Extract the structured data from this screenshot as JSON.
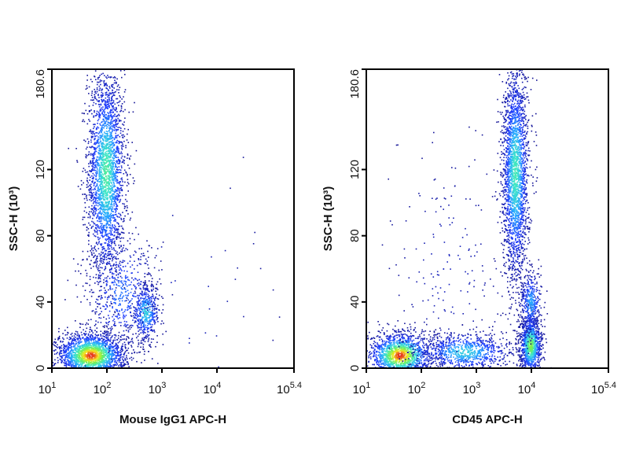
{
  "chart_data": [
    {
      "type": "scatter",
      "title": "",
      "xlabel": "Mouse IgG1 APC-H",
      "ylabel": "SSC-H (10³)",
      "x_scale": "log",
      "xlim": [
        10,
        251189
      ],
      "ylim": [
        0,
        180.6
      ],
      "x_ticks": [
        {
          "value": 10,
          "base": "10",
          "exp": "1"
        },
        {
          "value": 100,
          "base": "10",
          "exp": "2"
        },
        {
          "value": 1000,
          "base": "10",
          "exp": "3"
        },
        {
          "value": 10000,
          "base": "10",
          "exp": "4"
        },
        {
          "value": 251189,
          "base": "10",
          "exp": "5.4"
        }
      ],
      "y_ticks": [
        {
          "value": 0,
          "label": "0"
        },
        {
          "value": 40,
          "label": "40"
        },
        {
          "value": 80,
          "label": "80"
        },
        {
          "value": 120,
          "label": "120"
        },
        {
          "value": 180.6,
          "label": "180.6"
        }
      ],
      "populations": [
        {
          "x": 95,
          "y": 118,
          "density": "high"
        },
        {
          "x": 500,
          "y": 34,
          "density": "medium"
        },
        {
          "x": 50,
          "y": 8,
          "density": "very high"
        }
      ],
      "grid": false,
      "legend": "none"
    },
    {
      "type": "scatter",
      "title": "",
      "xlabel": "CD45 APC-H",
      "ylabel": "SSC-H (10³)",
      "x_scale": "log",
      "xlim": [
        10,
        251189
      ],
      "ylim": [
        0,
        180.6
      ],
      "x_ticks": [
        {
          "value": 10,
          "base": "10",
          "exp": "1"
        },
        {
          "value": 100,
          "base": "10",
          "exp": "2"
        },
        {
          "value": 1000,
          "base": "10",
          "exp": "3"
        },
        {
          "value": 10000,
          "base": "10",
          "exp": "4"
        },
        {
          "value": 251189,
          "base": "10",
          "exp": "5.4"
        }
      ],
      "y_ticks": [
        {
          "value": 0,
          "label": "0"
        },
        {
          "value": 40,
          "label": "40"
        },
        {
          "value": 80,
          "label": "80"
        },
        {
          "value": 120,
          "label": "120"
        },
        {
          "value": 180.6,
          "label": "180.6"
        }
      ],
      "populations": [
        {
          "x": 5000,
          "y": 118,
          "density": "high"
        },
        {
          "x": 9500,
          "y": 14,
          "density": "high"
        },
        {
          "x": 40,
          "y": 8,
          "density": "very high"
        }
      ],
      "grid": false,
      "legend": "none"
    }
  ]
}
